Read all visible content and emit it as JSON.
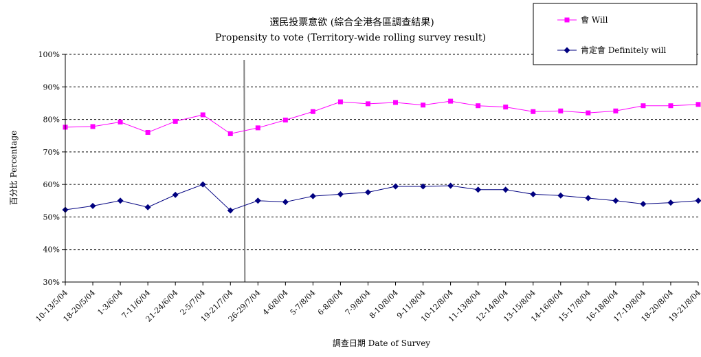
{
  "chart_data": {
    "type": "line",
    "title": "選民投票意欲 (綜合全港各區調查結果)",
    "subtitle": "Propensity to vote (Territory-wide rolling survey result)",
    "xlabel": "調查日期 Date of Survey",
    "ylabel": "百分比 Percentage",
    "ylim": [
      30,
      100
    ],
    "yticks": [
      "30%",
      "40%",
      "50%",
      "60%",
      "70%",
      "80%",
      "90%",
      "100%"
    ],
    "ytick_values": [
      30,
      40,
      50,
      60,
      70,
      80,
      90,
      100
    ],
    "grid": "horizontal dashed",
    "legend_position": "top-right",
    "categories": [
      "10-13/5/04",
      "18-20/5/04",
      "1-3/6/04",
      "7-11/6/04",
      "21-24/6/04",
      "2-5/7/04",
      "19-21/7/04",
      "26-29/7/04",
      "4-6/8/04",
      "5-7/8/04",
      "6-8/8/04",
      "7-9/8/04",
      "8-10/8/04",
      "9-11/8/04",
      "10-12/8/04",
      "11-13/8/04",
      "12-14/8/04",
      "13-15/8/04",
      "14-16/8/04",
      "15-17/8/04",
      "16-18/8/04",
      "17-19/8/04",
      "18-20/8/04",
      "19-21/8/04"
    ],
    "series": [
      {
        "name": "會 Will",
        "color": "#ff00ff",
        "marker": "square",
        "values": [
          77.6,
          77.8,
          79.2,
          76.0,
          79.4,
          81.4,
          75.6,
          77.4,
          79.8,
          82.4,
          85.4,
          84.8,
          85.2,
          84.4,
          85.6,
          84.2,
          83.8,
          82.4,
          82.6,
          82.0,
          82.6,
          84.2,
          84.2,
          84.6
        ]
      },
      {
        "name": "肯定會 Definitely will",
        "color": "#000080",
        "marker": "diamond",
        "values": [
          52.2,
          53.4,
          55.0,
          53.0,
          56.8,
          60.0,
          52.0,
          55.0,
          54.6,
          56.4,
          57.0,
          57.6,
          59.4,
          59.4,
          59.6,
          58.4,
          58.4,
          57.0,
          56.6,
          55.8,
          55.0,
          54.0,
          54.4,
          55.0
        ]
      }
    ],
    "divider_after_category": "19-21/7/04",
    "divider_color": "#808080"
  }
}
